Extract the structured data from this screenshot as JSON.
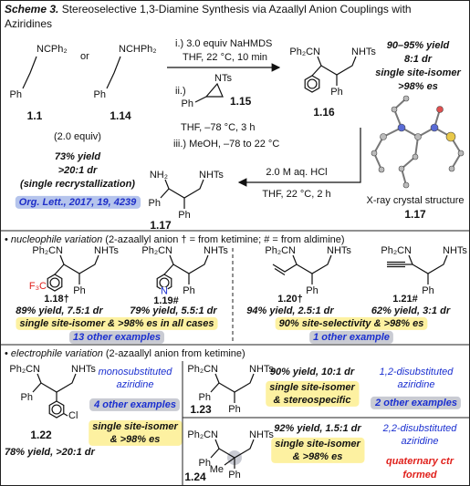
{
  "title": {
    "label": "Scheme 3.",
    "lines": [
      "Stereoselective 1,3-Diamine Synthesis via Azaallyl Anion Couplings with",
      "Aziridines"
    ]
  },
  "top": {
    "ketimine": {
      "imine": "NCPh₂",
      "aryl": "Ph",
      "id": "1.1"
    },
    "or": "or",
    "aldimine": {
      "imine": "NCHPh₂",
      "aryl": "Ph",
      "id": "1.14"
    },
    "amount": "(2.0 equiv)",
    "steps": {
      "base": "i.) 3.0 equiv NaHMDS",
      "base_conditions": "THF, 22 °C, 10 min",
      "electrophile": "ii.)",
      "electrophile_conditions": "THF, –78 °C, 3 h",
      "quench": "iii.) MeOH, –78 to 22 °C"
    },
    "aziridine": {
      "group": "NTs",
      "aryl": "Ph",
      "id": "1.15"
    },
    "product": {
      "amine": "Ph₂CN",
      "sulfonamide": "NHTs",
      "aryl": "Ph",
      "id": "1.16"
    },
    "product_result": [
      "90–95% yield",
      "8:1 dr",
      "single site-isomer",
      ">98% es"
    ],
    "xray": {
      "caption": "X-ray crystal structure",
      "id": "1.17"
    },
    "hydrolysis": [
      "2.0 M aq. HCl",
      "THF, 22 °C, 2 h"
    ],
    "diamine": {
      "amine": "NH₂",
      "sulfonamide": "NHTs",
      "aryls": [
        "Ph",
        "Ph"
      ],
      "id": "1.17"
    },
    "diamine_result": [
      "73% yield",
      ">20:1 dr",
      "(single recrystallization)"
    ],
    "reference": "Org. Lett., 2017, 19, 4239"
  },
  "nucleophile": {
    "heading": {
      "bullet": "•",
      "topic": "nucleophile variation",
      "note": "(2-azaallyl anion † = from ketimine; # = from aldimine)"
    },
    "compounds": [
      {
        "amine": "Ph₂CN",
        "sulfonamide": "NHTs",
        "aryl": "Ph",
        "substituent": "F₃C",
        "id": "1.18†",
        "result": "89% yield, 7.5:1 dr"
      },
      {
        "amine": "Ph₂CN",
        "sulfonamide": "NHTs",
        "aryl": "Ph",
        "substituent": "N",
        "id": "1.19#",
        "result": "79% yield, 5.5:1 dr"
      },
      {
        "amine": "Ph₂CN",
        "sulfonamide": "NHTs",
        "aryl": "Ph",
        "id": "1.20†",
        "result": "94% yield, 2.5:1 dr"
      },
      {
        "amine": "Ph₂CN",
        "sulfonamide": "NHTs",
        "aryl": "Ph",
        "id": "1.21#",
        "result": "62% yield, 3:1 dr"
      }
    ],
    "summaries": [
      {
        "text": "single site-isomer & >98% es in all cases",
        "examples": "13 other examples"
      },
      {
        "text": "90% site-selectivity & >98% es",
        "examples": "1 other example"
      }
    ]
  },
  "electrophile": {
    "heading": {
      "bullet": "•",
      "topic": "electrophile variation",
      "note": "(2-azaallyl anion from ketimine)"
    },
    "entries": [
      {
        "compound": {
          "amine": "Ph₂CN",
          "sulfonamide": "NHTs",
          "aryls": [
            "Ph"
          ],
          "substituent": "Cl",
          "id": "1.22"
        },
        "result": "78% yield, >20:1 dr",
        "aziridine": [
          "monosubstituted",
          "aziridine"
        ],
        "examples": "4 other examples",
        "selectivity": [
          "single site-isomer",
          "& >98% es"
        ]
      },
      {
        "compound": {
          "amine": "Ph₂CN",
          "sulfonamide": "NHTs",
          "aryls": [
            "Ph",
            "Ph"
          ],
          "id": "1.23"
        },
        "result": "90% yield, 10:1 dr",
        "selectivity": [
          "single site-isomer",
          "& stereospecific"
        ],
        "aziridine": [
          "1,2-disubstituted",
          "aziridine"
        ],
        "examples": "2 other examples"
      },
      {
        "compound": {
          "amine": "Ph₂CN",
          "sulfonamide": "NHTs",
          "aryls": [
            "Ph",
            "Ph"
          ],
          "substituent": "Me",
          "id": "1.24"
        },
        "result": "92% yield, 1.5:1 dr",
        "selectivity": [
          "single site-isomer",
          "& >98% es"
        ],
        "aziridine": [
          "2,2-disubstituted",
          "aziridine"
        ],
        "note": [
          "quaternary ctr",
          "formed"
        ]
      }
    ]
  }
}
